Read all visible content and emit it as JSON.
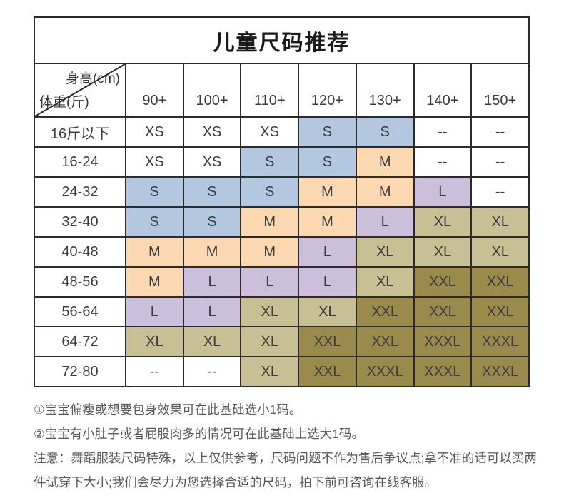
{
  "title": "儿童尺码推荐",
  "table": {
    "corner": {
      "top": "身高(cm)",
      "bottom": "体重(斤)"
    },
    "columns": [
      "90+",
      "100+",
      "110+",
      "120+",
      "130+",
      "140+",
      "150+"
    ],
    "rows": [
      {
        "label": "16斤以下",
        "cells": [
          {
            "v": "XS",
            "c": "none"
          },
          {
            "v": "XS",
            "c": "none"
          },
          {
            "v": "XS",
            "c": "none"
          },
          {
            "v": "S",
            "c": "blue"
          },
          {
            "v": "S",
            "c": "blue"
          },
          {
            "v": "--",
            "c": "none"
          },
          {
            "v": "--",
            "c": "none"
          }
        ]
      },
      {
        "label": "16-24",
        "cells": [
          {
            "v": "XS",
            "c": "none"
          },
          {
            "v": "XS",
            "c": "none"
          },
          {
            "v": "S",
            "c": "blue"
          },
          {
            "v": "S",
            "c": "blue"
          },
          {
            "v": "M",
            "c": "orange"
          },
          {
            "v": "--",
            "c": "none"
          },
          {
            "v": "--",
            "c": "none"
          }
        ]
      },
      {
        "label": "24-32",
        "cells": [
          {
            "v": "S",
            "c": "blue"
          },
          {
            "v": "S",
            "c": "blue"
          },
          {
            "v": "S",
            "c": "blue"
          },
          {
            "v": "M",
            "c": "orange"
          },
          {
            "v": "M",
            "c": "orange"
          },
          {
            "v": "L",
            "c": "purple"
          },
          {
            "v": "--",
            "c": "none"
          }
        ]
      },
      {
        "label": "32-40",
        "cells": [
          {
            "v": "S",
            "c": "blue"
          },
          {
            "v": "S",
            "c": "blue"
          },
          {
            "v": "M",
            "c": "orange"
          },
          {
            "v": "M",
            "c": "orange"
          },
          {
            "v": "L",
            "c": "purple"
          },
          {
            "v": "XL",
            "c": "tan"
          },
          {
            "v": "XL",
            "c": "tan"
          }
        ]
      },
      {
        "label": "40-48",
        "cells": [
          {
            "v": "M",
            "c": "orange"
          },
          {
            "v": "M",
            "c": "orange"
          },
          {
            "v": "M",
            "c": "orange"
          },
          {
            "v": "L",
            "c": "purple"
          },
          {
            "v": "XL",
            "c": "tan"
          },
          {
            "v": "XL",
            "c": "tan"
          },
          {
            "v": "XL",
            "c": "tan"
          }
        ]
      },
      {
        "label": "48-56",
        "cells": [
          {
            "v": "M",
            "c": "orange"
          },
          {
            "v": "L",
            "c": "purple"
          },
          {
            "v": "L",
            "c": "purple"
          },
          {
            "v": "L",
            "c": "purple"
          },
          {
            "v": "XL",
            "c": "tan"
          },
          {
            "v": "XXL",
            "c": "olive"
          },
          {
            "v": "XXL",
            "c": "olive"
          }
        ]
      },
      {
        "label": "56-64",
        "cells": [
          {
            "v": "L",
            "c": "purple"
          },
          {
            "v": "L",
            "c": "purple"
          },
          {
            "v": "XL",
            "c": "tan"
          },
          {
            "v": "XL",
            "c": "tan"
          },
          {
            "v": "XXL",
            "c": "olive"
          },
          {
            "v": "XXL",
            "c": "olive"
          },
          {
            "v": "XXL",
            "c": "olive"
          }
        ]
      },
      {
        "label": "64-72",
        "cells": [
          {
            "v": "XL",
            "c": "tan"
          },
          {
            "v": "XL",
            "c": "tan"
          },
          {
            "v": "XL",
            "c": "tan"
          },
          {
            "v": "XXL",
            "c": "olive"
          },
          {
            "v": "XXL",
            "c": "olive"
          },
          {
            "v": "XXXL",
            "c": "olive"
          },
          {
            "v": "XXXL",
            "c": "olive"
          }
        ]
      },
      {
        "label": "72-80",
        "cells": [
          {
            "v": "--",
            "c": "none"
          },
          {
            "v": "--",
            "c": "none"
          },
          {
            "v": "XL",
            "c": "tan"
          },
          {
            "v": "XXL",
            "c": "olive"
          },
          {
            "v": "XXXL",
            "c": "olive"
          },
          {
            "v": "XXXL",
            "c": "olive"
          },
          {
            "v": "XXXL",
            "c": "olive"
          }
        ]
      }
    ]
  },
  "colors": {
    "none": "transparent",
    "blue": "#b3c8e0",
    "orange": "#fbd8b2",
    "purple": "#cbbfdb",
    "tan": "#c7c094",
    "olive": "#9a8b4d"
  },
  "notes": [
    "①宝宝偏瘦或想要包身效果可在此基础选小1码。",
    "②宝宝有小肚子或者屁股肉多的情况可在此基础上选大1码。",
    "注意：舞蹈服装尺码特殊，以上仅供参考，尺码问题不作为售后争议点;拿不准的话可以买两件试穿下大小;我们会尽力为您选择合适的尺码，拍下前可咨询在线客服。"
  ]
}
